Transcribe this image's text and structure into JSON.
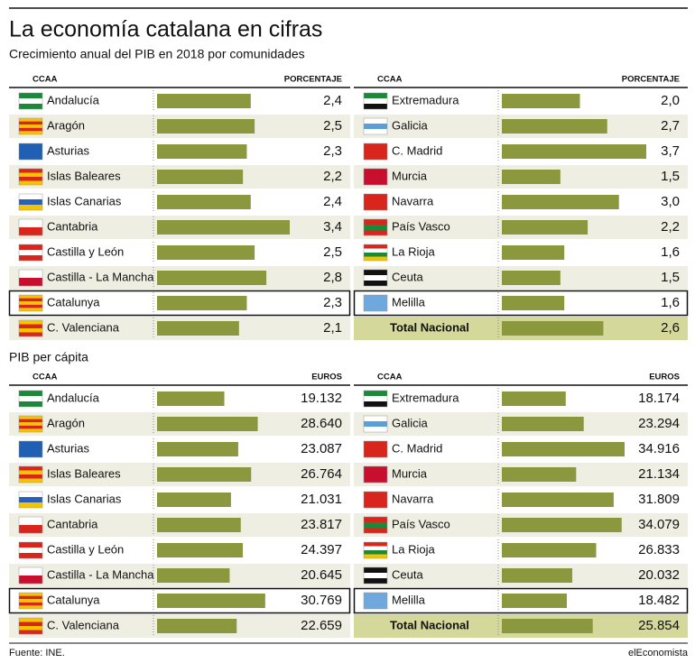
{
  "title": "La economía catalana en cifras",
  "subtitle": "Crecimiento anual del PIB en 2018 por comunidades",
  "section_title": "PIB per cápita",
  "source": "Fuente: INE.",
  "brand": "elEconomista",
  "chart_data": [
    {
      "type": "bar",
      "category_header": "CCAA",
      "value_header": "PORCENTAJE",
      "color": "#8b983d",
      "categories": [
        "Andalucía",
        "Aragón",
        "Asturias",
        "Islas Baleares",
        "Islas Canarias",
        "Cantabria",
        "Castilla y León",
        "Castilla - La Mancha",
        "Catalunya",
        "C. Valenciana"
      ],
      "values": [
        2.4,
        2.5,
        2.3,
        2.2,
        2.4,
        3.4,
        2.5,
        2.8,
        2.3,
        2.1
      ],
      "value_labels": [
        "2,4",
        "2,5",
        "2,3",
        "2,2",
        "2,4",
        "3,4",
        "2,5",
        "2,8",
        "2,3",
        "2,1"
      ]
    },
    {
      "type": "bar",
      "category_header": "CCAA",
      "value_header": "PORCENTAJE",
      "color": "#8b983d",
      "categories": [
        "Extremadura",
        "Galicia",
        "C. Madrid",
        "Murcia",
        "Navarra",
        "País Vasco",
        "La Rioja",
        "Ceuta",
        "Melilla",
        "Total Nacional"
      ],
      "values": [
        2.0,
        2.7,
        3.7,
        1.5,
        3.0,
        2.2,
        1.6,
        1.5,
        1.6,
        2.6
      ],
      "value_labels": [
        "2,0",
        "2,7",
        "3,7",
        "1,5",
        "3,0",
        "2,2",
        "1,6",
        "1,5",
        "1,6",
        "2,6"
      ]
    },
    {
      "type": "bar",
      "category_header": "CCAA",
      "value_header": "EUROS",
      "color": "#8b983d",
      "categories": [
        "Andalucía",
        "Aragón",
        "Asturias",
        "Islas Baleares",
        "Islas Canarias",
        "Cantabria",
        "Castilla y León",
        "Castilla - La Mancha",
        "Catalunya",
        "C. Valenciana"
      ],
      "values": [
        19132,
        28640,
        23087,
        26764,
        21031,
        23817,
        24397,
        20645,
        30769,
        22659
      ],
      "value_labels": [
        "19.132",
        "28.640",
        "23.087",
        "26.764",
        "21.031",
        "23.817",
        "24.397",
        "20.645",
        "30.769",
        "22.659"
      ]
    },
    {
      "type": "bar",
      "category_header": "CCAA",
      "value_header": "EUROS",
      "color": "#8b983d",
      "categories": [
        "Extremadura",
        "Galicia",
        "C. Madrid",
        "Murcia",
        "Navarra",
        "País Vasco",
        "La Rioja",
        "Ceuta",
        "Melilla",
        "Total Nacional"
      ],
      "values": [
        18174,
        23294,
        34916,
        21134,
        31809,
        34079,
        26833,
        20032,
        18482,
        25854
      ],
      "value_labels": [
        "18.174",
        "23.294",
        "34.916",
        "21.134",
        "31.809",
        "34.079",
        "26.833",
        "20.032",
        "18.482",
        "25.854"
      ]
    }
  ]
}
